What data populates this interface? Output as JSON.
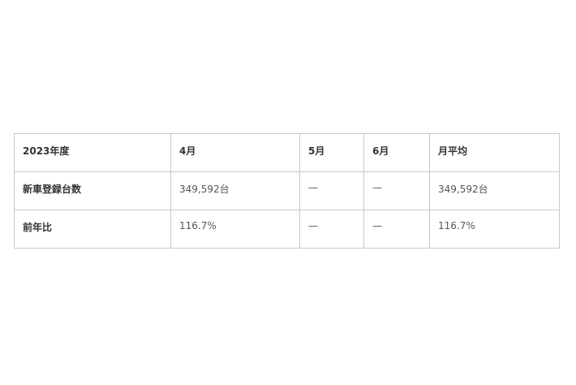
{
  "table": {
    "headers": [
      "2023年度",
      "4月",
      "5月",
      "6月",
      "月平均"
    ],
    "rows": [
      [
        "新車登録台数",
        "349,592台",
        "—",
        "—",
        "349,592台"
      ],
      [
        "前年比",
        "116.7%",
        "—",
        "—",
        "116.7%"
      ]
    ]
  }
}
